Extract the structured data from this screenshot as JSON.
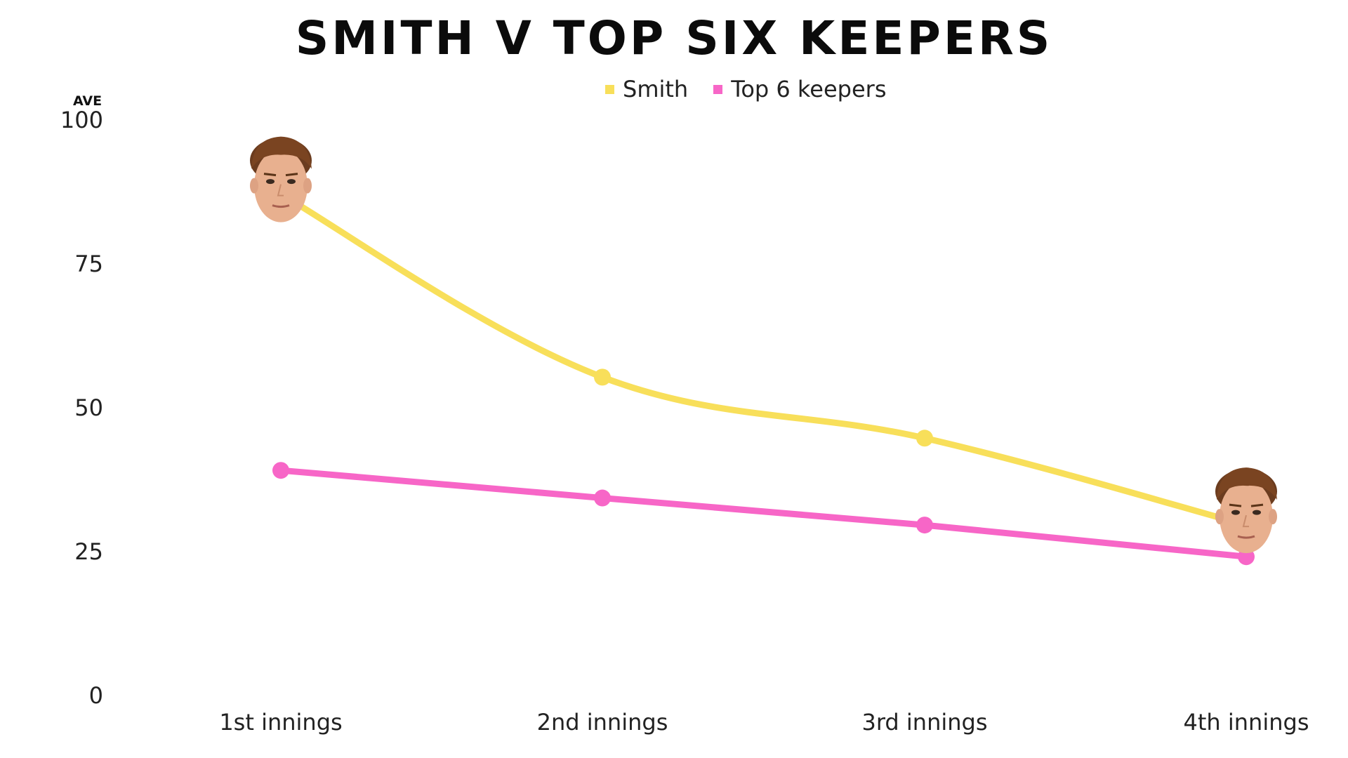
{
  "chart_data": {
    "type": "line",
    "title": "SMITH V TOP SIX KEEPERS",
    "ylabel": "AVE",
    "xlabel": "",
    "categories": [
      "1st innings",
      "2nd innings",
      "3rd innings",
      "4th innings"
    ],
    "ylim": [
      0,
      100
    ],
    "yticks": [
      0,
      25,
      50,
      75,
      100
    ],
    "grid": false,
    "legend_position": "top-center",
    "series": [
      {
        "name": "Smith",
        "color": "#F8DF5A",
        "values": [
          87,
          55.2,
          44.6,
          29.5
        ],
        "marker_icons": [
          "face-icon",
          null,
          null,
          "face-icon"
        ]
      },
      {
        "name": "Top 6 keepers",
        "color": "#F766C7",
        "values": [
          39,
          34.2,
          29.5,
          24
        ]
      }
    ]
  }
}
